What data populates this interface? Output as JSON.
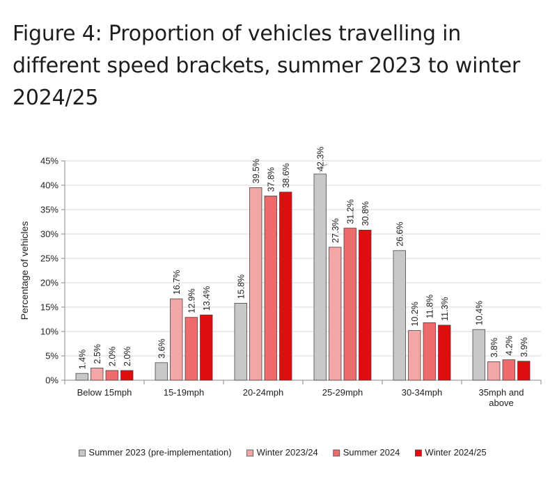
{
  "page_title": "Figure 4: Proportion of vehicles travelling in different speed brackets, summer 2023 to winter 2024/25",
  "chart_data": {
    "type": "bar",
    "title": "Figure 4: Proportion of vehicles travelling in different speed brackets, summer 2023 to winter 2024/25",
    "xlabel": "",
    "ylabel": "Percentage of vehicles",
    "ylim": [
      0,
      45
    ],
    "yticks": [
      0,
      5,
      10,
      15,
      20,
      25,
      30,
      35,
      40,
      45
    ],
    "ytick_labels": [
      "0%",
      "5%",
      "10%",
      "15%",
      "20%",
      "25%",
      "30%",
      "35%",
      "40%",
      "45%"
    ],
    "grid": true,
    "legend_position": "bottom",
    "categories": [
      [
        "Below 15mph"
      ],
      [
        "15-19mph"
      ],
      [
        "20-24mph"
      ],
      [
        "25-29mph"
      ],
      [
        "30-34mph"
      ],
      [
        "35mph and",
        "above"
      ]
    ],
    "series": [
      {
        "name": "Summer 2023 (pre-implementation)",
        "color": "#c8c8c8",
        "values": [
          1.4,
          3.6,
          15.8,
          42.3,
          26.6,
          10.4
        ],
        "labels": [
          "1.4%",
          "3.6%",
          "15.8%",
          "42.3%",
          "26.6%",
          "10.4%"
        ]
      },
      {
        "name": "Winter 2023/24",
        "color": "#f4a6a6",
        "values": [
          2.5,
          16.7,
          39.5,
          27.3,
          10.2,
          3.8
        ],
        "labels": [
          "2.5%",
          "16.7%",
          "39.5%",
          "27.3%",
          "10.2%",
          "3.8%"
        ]
      },
      {
        "name": "Summer 2024",
        "color": "#ee6b6b",
        "values": [
          2.0,
          12.9,
          37.8,
          31.2,
          11.8,
          4.2
        ],
        "labels": [
          "2.0%",
          "12.9%",
          "37.8%",
          "31.2%",
          "11.8%",
          "4.2%"
        ]
      },
      {
        "name": "Winter 2024/25",
        "color": "#df0d0d",
        "values": [
          2.0,
          13.4,
          38.6,
          30.8,
          11.3,
          3.9
        ],
        "labels": [
          "2.0%",
          "13.4%",
          "38.6%",
          "30.8%",
          "11.3%",
          "3.9%"
        ]
      }
    ]
  }
}
